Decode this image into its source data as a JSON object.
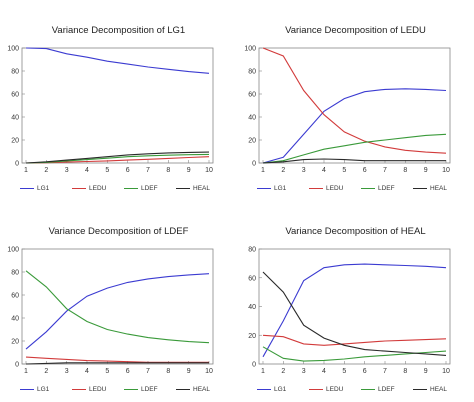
{
  "colors": {
    "LG1": "#3b3bd1",
    "LEDU": "#d23b3b",
    "LDEF": "#3a9a3a",
    "HEAL": "#2a2a2a"
  },
  "chart_data": [
    {
      "type": "line",
      "title": "Variance Decomposition of LG1",
      "x": [
        1,
        2,
        3,
        4,
        5,
        6,
        7,
        8,
        9,
        10
      ],
      "ylim": [
        0,
        100
      ],
      "yticks": [
        0,
        20,
        40,
        60,
        80,
        100
      ],
      "series": [
        {
          "name": "LG1",
          "values": [
            100,
            99.5,
            95,
            92,
            88.5,
            86,
            83.5,
            81.5,
            79.5,
            78
          ]
        },
        {
          "name": "LEDU",
          "values": [
            0,
            0.3,
            0.8,
            1.3,
            1.8,
            2.5,
            3.2,
            4.0,
            4.8,
            5.5
          ]
        },
        {
          "name": "LDEF",
          "values": [
            0,
            0.5,
            1.8,
            3.0,
            4.2,
            5.5,
            6.3,
            6.8,
            7.2,
            7.5
          ]
        },
        {
          "name": "HEAL",
          "values": [
            0,
            1.0,
            2.5,
            4.0,
            5.5,
            7.0,
            8.0,
            8.8,
            9.2,
            9.5
          ]
        }
      ]
    },
    {
      "type": "line",
      "title": "Variance Decomposition of LEDU",
      "x": [
        1,
        2,
        3,
        4,
        5,
        6,
        7,
        8,
        9,
        10
      ],
      "ylim": [
        0,
        100
      ],
      "yticks": [
        0,
        20,
        40,
        60,
        80,
        100
      ],
      "series": [
        {
          "name": "LG1",
          "values": [
            0,
            5,
            25,
            45,
            56,
            62,
            64,
            64.5,
            64,
            63
          ]
        },
        {
          "name": "LEDU",
          "values": [
            100,
            93,
            63,
            42,
            27,
            19,
            14,
            11,
            9.5,
            8.5
          ]
        },
        {
          "name": "LDEF",
          "values": [
            0,
            2,
            7,
            12,
            15,
            18,
            20,
            22,
            24,
            25
          ]
        },
        {
          "name": "HEAL",
          "values": [
            0,
            1,
            3,
            3.5,
            3,
            2,
            2,
            2,
            2,
            2
          ]
        }
      ]
    },
    {
      "type": "line",
      "title": "Variance Decomposition of LDEF",
      "x": [
        1,
        2,
        3,
        4,
        5,
        6,
        7,
        8,
        9,
        10
      ],
      "ylim": [
        0,
        100
      ],
      "yticks": [
        0,
        20,
        40,
        60,
        80,
        100
      ],
      "series": [
        {
          "name": "LG1",
          "values": [
            13,
            28,
            46,
            59,
            66,
            71,
            74,
            76,
            77.5,
            78.5
          ]
        },
        {
          "name": "LEDU",
          "values": [
            6,
            5,
            4,
            3,
            2.5,
            2,
            1.5,
            1.5,
            1.5,
            1.5
          ]
        },
        {
          "name": "LDEF",
          "values": [
            81,
            67,
            48,
            37,
            30,
            26,
            23,
            21,
            19.5,
            18.5
          ]
        },
        {
          "name": "HEAL",
          "values": [
            0,
            0.5,
            1,
            1,
            1,
            1,
            1,
            1,
            1,
            1
          ]
        }
      ]
    },
    {
      "type": "line",
      "title": "Variance Decomposition of HEAL",
      "x": [
        1,
        2,
        3,
        4,
        5,
        6,
        7,
        8,
        9,
        10
      ],
      "ylim": [
        0,
        80
      ],
      "yticks": [
        0,
        20,
        40,
        60,
        80
      ],
      "series": [
        {
          "name": "LG1",
          "values": [
            5,
            30,
            58,
            67,
            69,
            69.5,
            69,
            68.5,
            68,
            67
          ]
        },
        {
          "name": "LEDU",
          "values": [
            20,
            19,
            14,
            13,
            14,
            15,
            16,
            16.5,
            17,
            17.5
          ]
        },
        {
          "name": "LDEF",
          "values": [
            12,
            4,
            2,
            2.5,
            3.5,
            5,
            6,
            7,
            8,
            9
          ]
        },
        {
          "name": "HEAL",
          "values": [
            64,
            50,
            27,
            18,
            13,
            10,
            9,
            8,
            7,
            6
          ]
        }
      ]
    }
  ],
  "legend": [
    "LG1",
    "LEDU",
    "LDEF",
    "HEAL"
  ]
}
